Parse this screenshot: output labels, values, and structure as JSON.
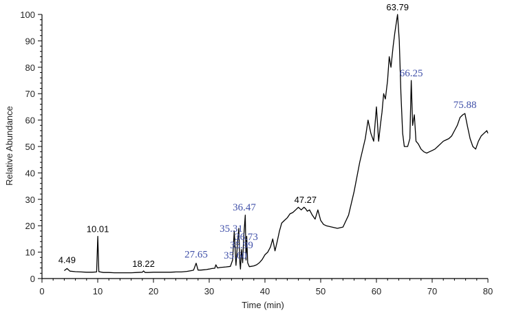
{
  "chart_data": {
    "type": "line",
    "title": "",
    "xlabel": "Time (min)",
    "ylabel": "Relative Abundance",
    "xlim": [
      0,
      80
    ],
    "ylim": [
      0,
      100
    ],
    "x_ticks": [
      0,
      10,
      20,
      30,
      40,
      50,
      60,
      70,
      80
    ],
    "y_ticks": [
      0,
      10,
      20,
      30,
      40,
      50,
      60,
      70,
      80,
      90,
      100
    ],
    "grid": false,
    "legend": "none",
    "colors": {
      "line": "#000000",
      "black_label": "#000000",
      "blue_label": "#3f4fa8"
    },
    "series": [
      {
        "x": [
          4.0,
          4.49,
          5.0,
          6.0,
          7.0,
          8.0,
          9.0,
          9.8,
          10.01,
          10.2,
          11.0,
          12.0,
          13.0,
          14.0,
          15.0,
          16.0,
          17.0,
          18.0,
          18.22,
          18.5,
          19.0,
          20.0,
          21.0,
          22.0,
          23.0,
          24.0,
          25.0,
          26.0,
          26.8,
          27.2,
          27.65,
          28.0,
          28.5,
          29.0,
          29.5,
          30.0,
          30.5,
          31.0,
          31.2,
          31.5,
          32.0,
          33.0,
          33.8,
          34.2,
          34.5,
          34.8,
          35.1,
          35.31,
          35.5,
          35.6,
          35.8,
          36.0,
          36.2,
          36.47,
          36.6,
          36.73,
          36.9,
          37.2,
          37.5,
          38.0,
          38.5,
          39.0,
          39.5,
          40.0,
          40.5,
          41.0,
          41.4,
          41.8,
          42.2,
          42.6,
          43.0,
          43.5,
          44.0,
          44.5,
          45.0,
          45.5,
          46.0,
          46.5,
          47.0,
          47.27,
          47.6,
          48.0,
          48.5,
          49.0,
          49.5,
          50.0,
          50.5,
          51.0,
          52.0,
          53.0,
          54.0,
          55.0,
          56.0,
          57.0,
          58.0,
          58.5,
          59.0,
          59.5,
          60.0,
          60.4,
          60.7,
          61.0,
          61.3,
          61.6,
          62.0,
          62.3,
          62.6,
          63.0,
          63.3,
          63.79,
          64.1,
          64.4,
          64.7,
          65.0,
          65.3,
          65.6,
          66.0,
          66.25,
          66.5,
          66.8,
          67.1,
          67.5,
          68.0,
          68.5,
          69.0,
          69.5,
          70.0,
          70.5,
          71.0,
          71.5,
          72.0,
          72.5,
          73.0,
          73.5,
          74.0,
          74.5,
          75.0,
          75.5,
          75.88,
          76.3,
          76.8,
          77.3,
          77.8,
          78.3,
          78.8,
          79.3,
          79.8,
          80.0
        ],
        "y": [
          3.0,
          3.8,
          2.8,
          2.6,
          2.5,
          2.4,
          2.4,
          2.5,
          16.0,
          2.6,
          2.3,
          2.3,
          2.2,
          2.2,
          2.2,
          2.2,
          2.3,
          2.4,
          2.9,
          2.3,
          2.3,
          2.4,
          2.4,
          2.4,
          2.4,
          2.5,
          2.5,
          2.7,
          3.0,
          3.2,
          5.8,
          3.2,
          3.2,
          3.3,
          3.4,
          3.6,
          3.8,
          3.9,
          5.2,
          4.0,
          4.2,
          4.4,
          4.6,
          7.0,
          18.0,
          5.0,
          14.0,
          19.0,
          6.0,
          3.6,
          11.0,
          6.0,
          16.0,
          24.0,
          7.0,
          16.0,
          6.0,
          4.5,
          4.6,
          4.8,
          5.2,
          6.0,
          7.2,
          9.0,
          10.0,
          12.0,
          15.0,
          10.5,
          14.0,
          18.0,
          21.0,
          22.0,
          23.0,
          24.5,
          25.0,
          26.0,
          27.0,
          26.0,
          27.0,
          26.5,
          25.5,
          26.0,
          24.0,
          22.5,
          26.0,
          22.0,
          20.5,
          20.0,
          19.5,
          19.0,
          19.5,
          24.0,
          33.0,
          44.0,
          53.0,
          60.0,
          55.0,
          52.0,
          65.0,
          52.0,
          58.0,
          63.0,
          70.0,
          68.0,
          75.0,
          84.0,
          80.0,
          88.0,
          93.0,
          100.0,
          90.0,
          70.0,
          55.0,
          50.0,
          50.0,
          50.0,
          53.0,
          75.0,
          58.0,
          62.0,
          52.0,
          51.0,
          49.0,
          48.0,
          47.5,
          48.0,
          48.5,
          49.0,
          50.0,
          51.0,
          52.0,
          52.5,
          53.0,
          54.0,
          56.0,
          58.0,
          61.0,
          62.0,
          62.5,
          58.0,
          53.0,
          50.0,
          49.0,
          52.0,
          54.0,
          55.0,
          56.0,
          55.0
        ]
      }
    ],
    "annotations": [
      {
        "text": "4.49",
        "x": 4.49,
        "color": "black"
      },
      {
        "text": "10.01",
        "x": 10.01,
        "color": "black"
      },
      {
        "text": "18.22",
        "x": 18.22,
        "color": "black"
      },
      {
        "text": "27.65",
        "x": 27.65,
        "color": "blue"
      },
      {
        "text": "35.31",
        "x": 35.31,
        "color": "blue"
      },
      {
        "text": "35.60",
        "x": 35.6,
        "color": "blue"
      },
      {
        "text": "35.99",
        "x": 35.99,
        "color": "blue"
      },
      {
        "text": "36.47",
        "x": 36.47,
        "color": "blue"
      },
      {
        "text": "36.73",
        "x": 36.73,
        "color": "blue"
      },
      {
        "text": "47.27",
        "x": 47.27,
        "color": "black"
      },
      {
        "text": "63.79",
        "x": 63.79,
        "color": "black"
      },
      {
        "text": "66.25",
        "x": 66.25,
        "color": "blue"
      },
      {
        "text": "75.88",
        "x": 75.88,
        "color": "blue"
      }
    ]
  }
}
